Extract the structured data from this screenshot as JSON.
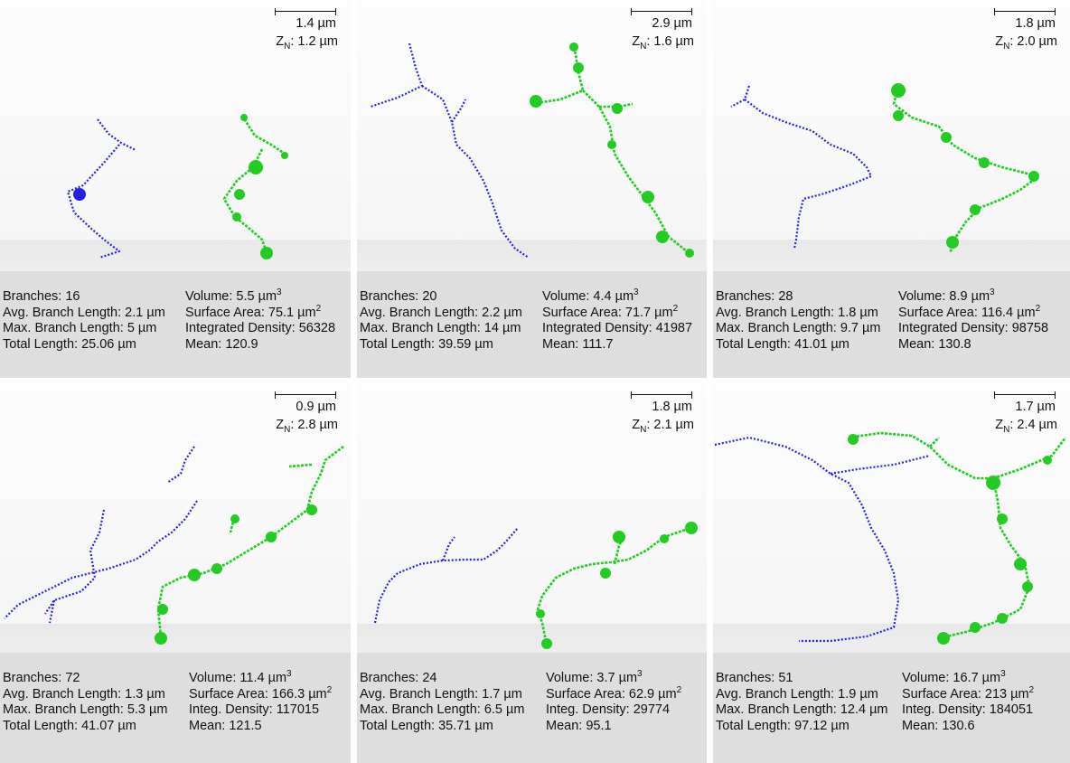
{
  "colors": {
    "blue": "#2222e0",
    "green": "#22cc22",
    "stats_bg": "#dedede"
  },
  "panels": [
    {
      "scale": "1.4 µm",
      "zn": "1.2 µm",
      "branches": "Branches: 16",
      "avg": "Avg. Branch Length: 2.1 µm",
      "max": "Max. Branch Length: 5 µm",
      "total": "Total Length: 25.06 µm",
      "volume": "Volume: 5.5 µm",
      "surface": "Surface Area: 75.1 µm",
      "density": "Integrated Density: 56328",
      "mean": "Mean: 120.9"
    },
    {
      "scale": "2.9 µm",
      "zn": "1.6 µm",
      "branches": "Branches: 20",
      "avg": "Avg. Branch Length: 2.2 µm",
      "max": "Max. Branch Length: 14 µm",
      "total": "Total Length: 39.59 µm",
      "volume": "Volume: 4.4 µm",
      "surface": "Surface Area: 71.7 µm",
      "density": "Integrated Density: 41987",
      "mean": "Mean: 111.7"
    },
    {
      "scale": "1.8 µm",
      "zn": "2.0 µm",
      "branches": "Branches: 28",
      "avg": "Avg. Branch Length: 1.8 µm",
      "max": "Max. Branch Length: 9.7 µm",
      "total": "Total Length: 41.01 µm",
      "volume": "Volume: 8.9 µm",
      "surface": "Surface Area: 116.4 µm",
      "density": "Integrated Density: 98758",
      "mean": "Mean: 130.8"
    },
    {
      "scale": "0.9 µm",
      "zn": "2.8 µm",
      "branches": "Branches: 72",
      "avg": "Avg. Branch Length: 1.3 µm",
      "max": "Max. Branch Length: 5.3 µm",
      "total": "Total Length: 41.07 µm",
      "volume": "Volume: 11.4 µm",
      "surface": "Surface Area: 166.3 µm",
      "density": "Integ. Density: 117015",
      "mean": "Mean: 121.5"
    },
    {
      "scale": "1.8 µm",
      "zn": "2.1 µm",
      "branches": "Branches: 24",
      "avg": "Avg. Branch Length: 1.7 µm",
      "max": "Max. Branch Length: 6.5 µm",
      "total": "Total Length: 35.71 µm",
      "volume": "Volume: 3.7 µm",
      "surface": "Surface Area: 62.9 µm",
      "density": "Integ. Density: 29774",
      "mean": "Mean: 95.1"
    },
    {
      "scale": "1.7 µm",
      "zn": "2.4 µm",
      "branches": "Branches: 51",
      "avg": "Avg. Branch Length: 1.9 µm",
      "max": "Max. Branch Length: 12.4 µm",
      "total": "Total Length: 97.12 µm",
      "volume": "Volume: 16.7 µm",
      "surface": "Surface Area: 213 µm",
      "density": "Integ. Density: 184051",
      "mean": "Mean: 130.6"
    }
  ],
  "zn_prefix": "Z",
  "zn_sub": "N",
  "zn_sep": ": ",
  "exp3": "3",
  "exp2": "2"
}
